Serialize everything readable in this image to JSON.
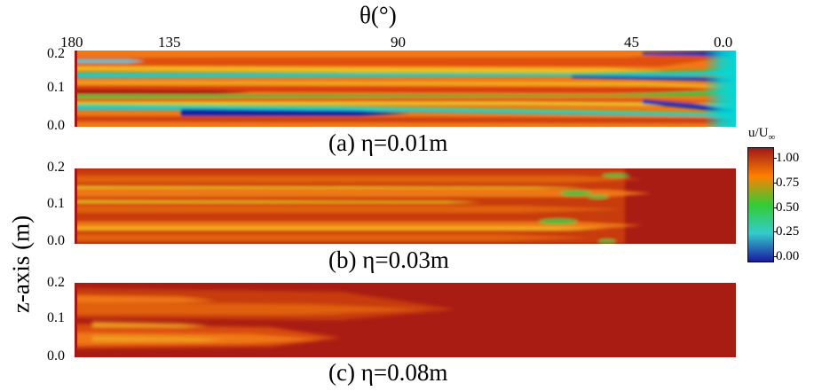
{
  "figure": {
    "top_axis": {
      "title": "θ(°)",
      "ticks": [
        "180",
        "135",
        "90",
        "45",
        "0.0"
      ]
    },
    "y_axis": {
      "title": "z-axis (m)",
      "ticks": [
        "0.2",
        "0.1",
        "0.0"
      ]
    },
    "panels": [
      {
        "caption": "(a) η=0.01m"
      },
      {
        "caption": "(b) η=0.03m"
      },
      {
        "caption": "(c) η=0.08m"
      }
    ],
    "colorbar": {
      "title_main": "u/U",
      "title_sub": "∞",
      "ticks": [
        "1.00",
        "0.75",
        "0.50",
        "0.25",
        "0.00"
      ],
      "colors": [
        "#a01818",
        "#ff8000",
        "#33cc33",
        "#33cccc",
        "#1a1aa0"
      ]
    }
  }
}
